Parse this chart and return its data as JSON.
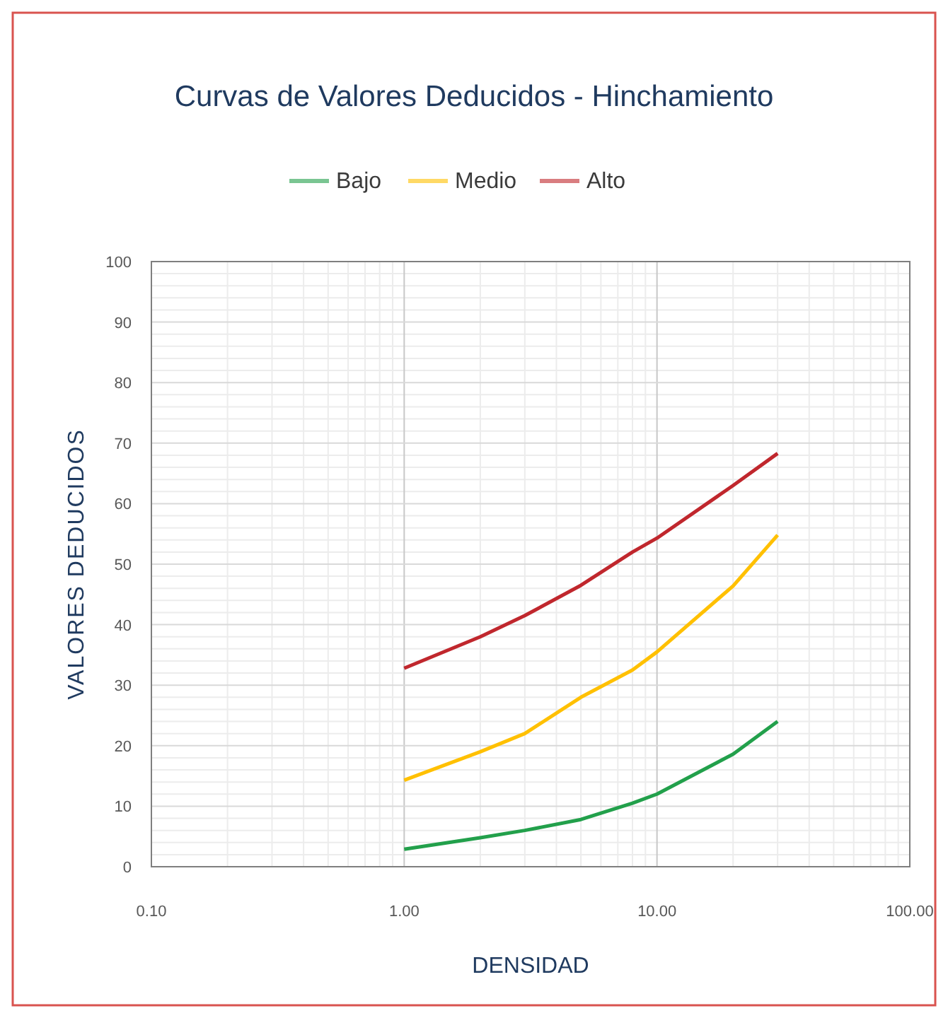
{
  "chart_data": {
    "type": "line",
    "title": "Curvas de Valores Deducidos - Hinchamiento",
    "xlabel": "DENSIDAD",
    "ylabel": "VALORES DEDUCIDOS",
    "x": [
      1,
      2,
      3,
      5,
      8,
      10,
      20,
      30
    ],
    "series": [
      {
        "name": "Bajo",
        "color": "#22a04b",
        "values": [
          2.9,
          4.8,
          6,
          7.8,
          10.5,
          12,
          18.6,
          24
        ]
      },
      {
        "name": "Medio",
        "color": "#ffc000",
        "values": [
          14.3,
          19,
          22,
          28,
          32.5,
          35.5,
          46.4,
          54.8
        ]
      },
      {
        "name": "Alto",
        "color": "#c0272d",
        "values": [
          32.8,
          38,
          41.5,
          46.5,
          52,
          54.3,
          63,
          68.3
        ]
      }
    ],
    "log": "x",
    "xlim": [
      0.1,
      100
    ],
    "xticks": [
      {
        "value": 0.1,
        "label": "0.10"
      },
      {
        "value": 1,
        "label": "1.00"
      },
      {
        "value": 10,
        "label": "10.00"
      },
      {
        "value": 100,
        "label": "100.00"
      }
    ],
    "ylim": [
      0,
      100
    ],
    "yticks": [
      0,
      10,
      20,
      30,
      40,
      50,
      60,
      70,
      80,
      90,
      100
    ],
    "grid": true,
    "legend": "top",
    "marker": "none",
    "line_style": "solid"
  }
}
